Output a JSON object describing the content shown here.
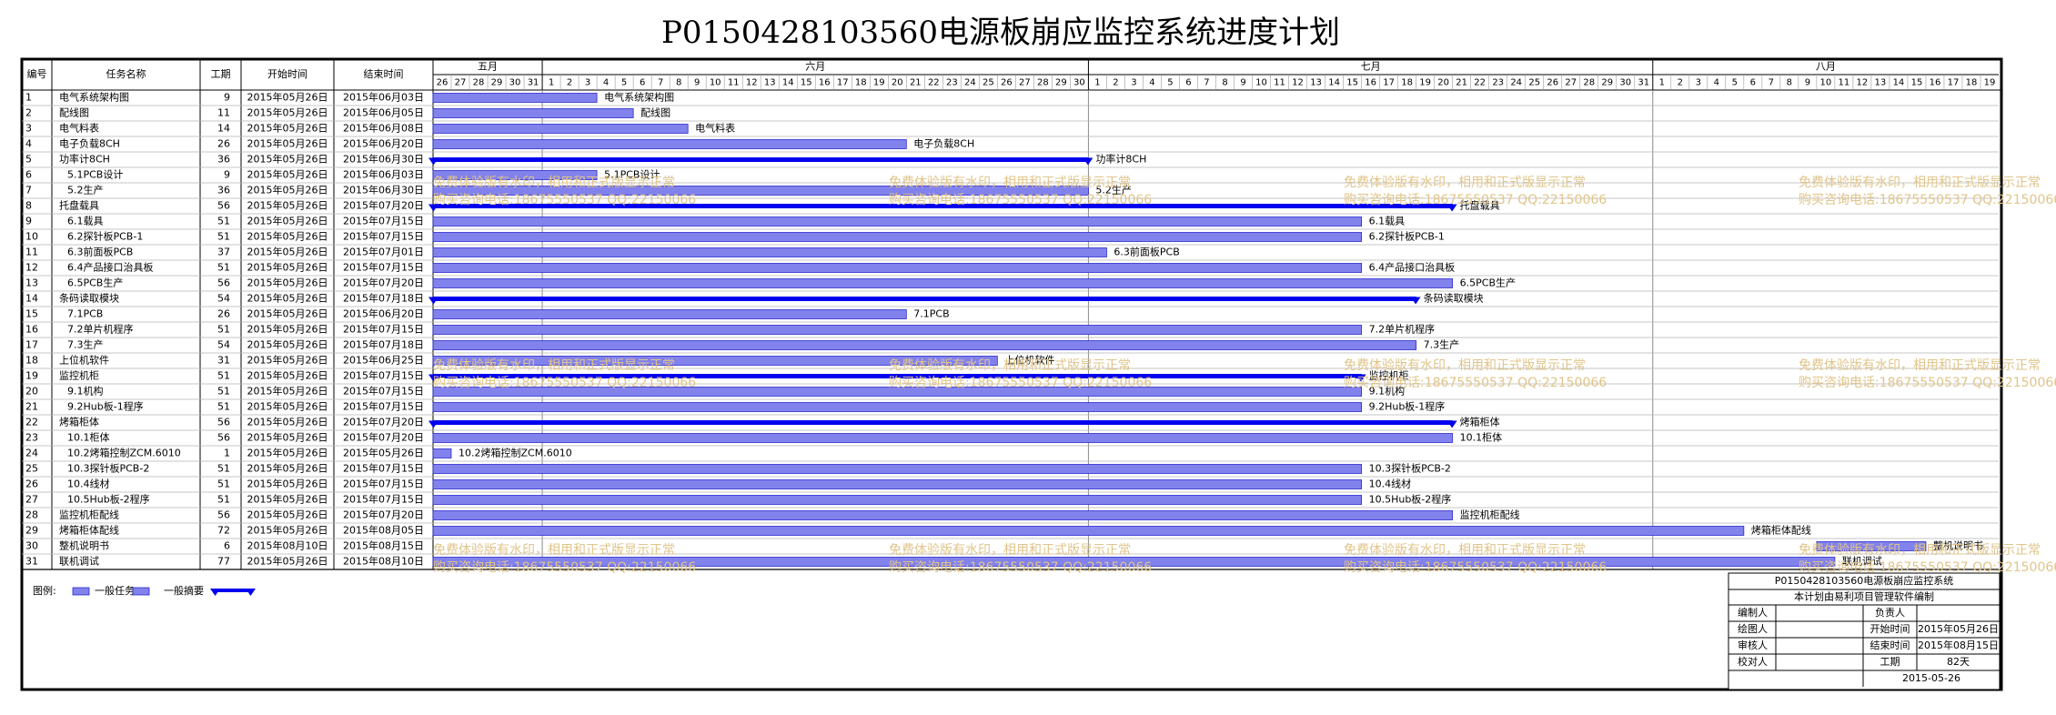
{
  "title": "P0150428103560电源板崩应监控系统进度计划",
  "headers": {
    "id": "编号",
    "name": "任务名称",
    "duration": "工期",
    "start": "开始时间",
    "end": "结束时间"
  },
  "colors": {
    "bar_fill": "#8282ec",
    "bar_stroke": "#2a2ad0",
    "summary": "#0000ee",
    "grid": "#b5b5b5",
    "watermark": "#e0c48a"
  },
  "chart_data": {
    "type": "gantt",
    "title": "P0150428103560电源板崩应监控系统进度计划",
    "x_range": [
      "2015-05-26",
      "2015-08-19"
    ],
    "months": [
      {
        "label": "五月",
        "days": [
          "26",
          "27",
          "28",
          "29",
          "30",
          "31"
        ]
      },
      {
        "label": "六月",
        "days": [
          "1",
          "2",
          "3",
          "4",
          "5",
          "6",
          "7",
          "8",
          "9",
          "10",
          "11",
          "12",
          "13",
          "14",
          "15",
          "16",
          "17",
          "18",
          "19",
          "20",
          "21",
          "22",
          "23",
          "24",
          "25",
          "26",
          "27",
          "28",
          "29",
          "30"
        ]
      },
      {
        "label": "七月",
        "days": [
          "1",
          "2",
          "3",
          "4",
          "5",
          "6",
          "7",
          "8",
          "9",
          "10",
          "11",
          "12",
          "13",
          "14",
          "15",
          "16",
          "17",
          "18",
          "19",
          "20",
          "21",
          "22",
          "23",
          "24",
          "25",
          "26",
          "27",
          "28",
          "29",
          "30",
          "31"
        ]
      },
      {
        "label": "八月",
        "days": [
          "1",
          "2",
          "3",
          "4",
          "5",
          "6",
          "7",
          "8",
          "9",
          "10",
          "11",
          "12",
          "13",
          "14",
          "15",
          "16",
          "17",
          "18",
          "19"
        ]
      }
    ],
    "tasks": [
      {
        "id": "1",
        "name": "电气系统架构图",
        "indent": 0,
        "duration": "9",
        "start": "2015年05月26日",
        "end": "2015年06月03日",
        "bar_label": "电气系统架构图",
        "summary": false
      },
      {
        "id": "2",
        "name": "配线图",
        "indent": 0,
        "duration": "11",
        "start": "2015年05月26日",
        "end": "2015年06月05日",
        "bar_label": "配线图",
        "summary": false
      },
      {
        "id": "3",
        "name": "电气料表",
        "indent": 0,
        "duration": "14",
        "start": "2015年05月26日",
        "end": "2015年06月08日",
        "bar_label": "电气料表",
        "summary": false
      },
      {
        "id": "4",
        "name": "电子负载8CH",
        "indent": 0,
        "duration": "26",
        "start": "2015年05月26日",
        "end": "2015年06月20日",
        "bar_label": "电子负载8CH",
        "summary": false
      },
      {
        "id": "5",
        "name": "功率计8CH",
        "indent": 0,
        "duration": "36",
        "start": "2015年05月26日",
        "end": "2015年06月30日",
        "bar_label": "功率计8CH",
        "summary": true
      },
      {
        "id": "6",
        "name": "5.1PCB设计",
        "indent": 1,
        "duration": "9",
        "start": "2015年05月26日",
        "end": "2015年06月03日",
        "bar_label": "5.1PCB设计",
        "summary": false
      },
      {
        "id": "7",
        "name": "5.2生产",
        "indent": 1,
        "duration": "36",
        "start": "2015年05月26日",
        "end": "2015年06月30日",
        "bar_label": "5.2生产",
        "summary": false
      },
      {
        "id": "8",
        "name": "托盘载具",
        "indent": 0,
        "duration": "56",
        "start": "2015年05月26日",
        "end": "2015年07月20日",
        "bar_label": "托盘载具",
        "summary": true
      },
      {
        "id": "9",
        "name": "6.1载具",
        "indent": 1,
        "duration": "51",
        "start": "2015年05月26日",
        "end": "2015年07月15日",
        "bar_label": "6.1载具",
        "summary": false
      },
      {
        "id": "10",
        "name": "6.2探针板PCB-1",
        "indent": 1,
        "duration": "51",
        "start": "2015年05月26日",
        "end": "2015年07月15日",
        "bar_label": "6.2探针板PCB-1",
        "summary": false
      },
      {
        "id": "11",
        "name": "6.3前面板PCB",
        "indent": 1,
        "duration": "37",
        "start": "2015年05月26日",
        "end": "2015年07月01日",
        "bar_label": "6.3前面板PCB",
        "summary": false
      },
      {
        "id": "12",
        "name": "6.4产品接口治具板",
        "indent": 1,
        "duration": "51",
        "start": "2015年05月26日",
        "end": "2015年07月15日",
        "bar_label": "6.4产品接口治具板",
        "summary": false
      },
      {
        "id": "13",
        "name": "6.5PCB生产",
        "indent": 1,
        "duration": "56",
        "start": "2015年05月26日",
        "end": "2015年07月20日",
        "bar_label": "6.5PCB生产",
        "summary": false
      },
      {
        "id": "14",
        "name": "条码读取模块",
        "indent": 0,
        "duration": "54",
        "start": "2015年05月26日",
        "end": "2015年07月18日",
        "bar_label": "条码读取模块",
        "summary": true
      },
      {
        "id": "15",
        "name": "7.1PCB",
        "indent": 1,
        "duration": "26",
        "start": "2015年05月26日",
        "end": "2015年06月20日",
        "bar_label": "7.1PCB",
        "summary": false
      },
      {
        "id": "16",
        "name": "7.2单片机程序",
        "indent": 1,
        "duration": "51",
        "start": "2015年05月26日",
        "end": "2015年07月15日",
        "bar_label": "7.2单片机程序",
        "summary": false
      },
      {
        "id": "17",
        "name": "7.3生产",
        "indent": 1,
        "duration": "54",
        "start": "2015年05月26日",
        "end": "2015年07月18日",
        "bar_label": "7.3生产",
        "summary": false
      },
      {
        "id": "18",
        "name": "上位机软件",
        "indent": 0,
        "duration": "31",
        "start": "2015年05月26日",
        "end": "2015年06月25日",
        "bar_label": "上位机软件",
        "summary": false
      },
      {
        "id": "19",
        "name": "监控机柜",
        "indent": 0,
        "duration": "51",
        "start": "2015年05月26日",
        "end": "2015年07月15日",
        "bar_label": "监控机柜",
        "summary": true
      },
      {
        "id": "20",
        "name": "9.1机构",
        "indent": 1,
        "duration": "51",
        "start": "2015年05月26日",
        "end": "2015年07月15日",
        "bar_label": "9.1机构",
        "summary": false
      },
      {
        "id": "21",
        "name": "9.2Hub板-1程序",
        "indent": 1,
        "duration": "51",
        "start": "2015年05月26日",
        "end": "2015年07月15日",
        "bar_label": "9.2Hub板-1程序",
        "summary": false
      },
      {
        "id": "22",
        "name": "烤箱柜体",
        "indent": 0,
        "duration": "56",
        "start": "2015年05月26日",
        "end": "2015年07月20日",
        "bar_label": "烤箱柜体",
        "summary": true
      },
      {
        "id": "23",
        "name": "10.1柜体",
        "indent": 1,
        "duration": "56",
        "start": "2015年05月26日",
        "end": "2015年07月20日",
        "bar_label": "10.1柜体",
        "summary": false
      },
      {
        "id": "24",
        "name": "10.2烤箱控制ZCM.6010",
        "indent": 1,
        "duration": "1",
        "start": "2015年05月26日",
        "end": "2015年05月26日",
        "bar_label": "10.2烤箱控制ZCM.6010",
        "summary": false
      },
      {
        "id": "25",
        "name": "10.3探针板PCB-2",
        "indent": 1,
        "duration": "51",
        "start": "2015年05月26日",
        "end": "2015年07月15日",
        "bar_label": "10.3探针板PCB-2",
        "summary": false
      },
      {
        "id": "26",
        "name": "10.4线材",
        "indent": 1,
        "duration": "51",
        "start": "2015年05月26日",
        "end": "2015年07月15日",
        "bar_label": "10.4线材",
        "summary": false
      },
      {
        "id": "27",
        "name": "10.5Hub板-2程序",
        "indent": 1,
        "duration": "51",
        "start": "2015年05月26日",
        "end": "2015年07月15日",
        "bar_label": "10.5Hub板-2程序",
        "summary": false
      },
      {
        "id": "28",
        "name": "监控机柜配线",
        "indent": 0,
        "duration": "56",
        "start": "2015年05月26日",
        "end": "2015年07月20日",
        "bar_label": "监控机柜配线",
        "summary": false
      },
      {
        "id": "29",
        "name": "烤箱柜体配线",
        "indent": 0,
        "duration": "72",
        "start": "2015年05月26日",
        "end": "2015年08月05日",
        "bar_label": "烤箱柜体配线",
        "summary": false
      },
      {
        "id": "30",
        "name": "整机说明书",
        "indent": 0,
        "duration": "6",
        "start": "2015年08月10日",
        "end": "2015年08月15日",
        "bar_label": "整机说明书",
        "summary": false
      },
      {
        "id": "31",
        "name": "联机调试",
        "indent": 0,
        "duration": "77",
        "start": "2015年05月26日",
        "end": "2015年08月10日",
        "bar_label": "联机调试",
        "summary": false
      }
    ],
    "legend": {
      "prefix": "图例:",
      "task": "一般任务",
      "summary": "一般摘要"
    }
  },
  "info_box": {
    "title": "P0150428103560电源板崩应监控系统",
    "subtitle": "本计划由易利项目管理软件编制",
    "rows": [
      {
        "left_label": "编制人",
        "left_value": "",
        "right_label": "负责人",
        "right_value": ""
      },
      {
        "left_label": "绘图人",
        "left_value": "",
        "right_label": "开始时间",
        "right_value": "2015年05月26日"
      },
      {
        "left_label": "审核人",
        "left_value": "",
        "right_label": "结束时间",
        "right_value": "2015年08月15日"
      },
      {
        "left_label": "校对人",
        "left_value": "",
        "right_label": "工期",
        "right_value": "82天"
      }
    ],
    "date": "2015-05-26"
  },
  "watermark": {
    "line1": "免费体验版有水印，相用和正式版显示正常",
    "line2": "购买咨询电话:18675550537 QQ:22150066"
  }
}
